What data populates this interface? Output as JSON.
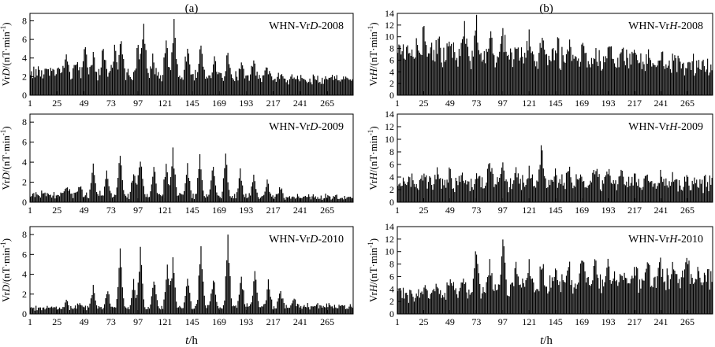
{
  "figure": {
    "columns": [
      {
        "label": "(a)"
      },
      {
        "label": "(b)"
      }
    ],
    "xlabel": {
      "var": "t",
      "unit": "/h"
    }
  },
  "chart_data": [
    {
      "type": "bar",
      "column": 0,
      "row": 0,
      "annotation": "WHN-VrD-2008",
      "annotation_parts": [
        "WHN-Vr",
        "D",
        "-2008"
      ],
      "ylabel": "VrD/(nT·min⁻¹)",
      "ylabel_parts": [
        "Vr",
        "D",
        "/(nT·min",
        "-1",
        ")"
      ],
      "ylim": [
        0,
        8.8
      ],
      "yticks": [
        0,
        2,
        4,
        6,
        8
      ],
      "xlim": [
        1,
        288
      ],
      "xticks": [
        1,
        25,
        49,
        73,
        97,
        121,
        145,
        169,
        193,
        217,
        241,
        265
      ],
      "baseline": 2.3,
      "noise": 0.55,
      "peaks": [
        [
          25,
          0.6
        ],
        [
          33,
          1.4
        ],
        [
          42,
          1.4
        ],
        [
          50,
          2.5
        ],
        [
          57,
          2.0
        ],
        [
          66,
          2.5
        ],
        [
          76,
          3.0
        ],
        [
          82,
          3.5
        ],
        [
          97,
          3.0
        ],
        [
          102,
          5.9
        ],
        [
          110,
          1.6
        ],
        [
          122,
          3.5
        ],
        [
          129,
          5.5
        ],
        [
          141,
          3.0
        ],
        [
          153,
          3.5
        ],
        [
          165,
          2.5
        ],
        [
          177,
          2.5
        ],
        [
          189,
          1.5
        ],
        [
          200,
          2.0
        ],
        [
          212,
          1.0
        ],
        [
          224,
          0.8
        ]
      ],
      "ystart": 2.5,
      "yend": 1.6
    },
    {
      "type": "bar",
      "column": 1,
      "row": 0,
      "annotation": "WHN-VrH-2008",
      "annotation_parts": [
        "WHN-Vr",
        "H",
        "-2008"
      ],
      "ylabel": "VrH/(nT·min⁻¹)",
      "ylabel_parts": [
        "Vr",
        "H",
        "/(nT·min",
        "-1",
        ")"
      ],
      "ylim": [
        0,
        14
      ],
      "yticks": [
        0,
        2,
        4,
        6,
        8,
        10,
        12,
        14
      ],
      "xlim": [
        1,
        288
      ],
      "xticks": [
        1,
        25,
        49,
        73,
        97,
        121,
        145,
        169,
        193,
        217,
        241,
        265
      ],
      "baseline": 5.4,
      "noise": 1.9,
      "peaks": [
        [
          25,
          4.5
        ],
        [
          38,
          2.5
        ],
        [
          49,
          3.5
        ],
        [
          62,
          4.0
        ],
        [
          73,
          5.0
        ],
        [
          86,
          3.0
        ],
        [
          97,
          3.2
        ],
        [
          110,
          2.8
        ],
        [
          121,
          3.0
        ],
        [
          134,
          4.0
        ],
        [
          146,
          2.5
        ],
        [
          158,
          2.2
        ],
        [
          170,
          2.5
        ],
        [
          182,
          2.2
        ],
        [
          194,
          2.0
        ],
        [
          206,
          1.8
        ],
        [
          218,
          2.0
        ],
        [
          230,
          1.8
        ],
        [
          242,
          1.8
        ],
        [
          254,
          1.8
        ]
      ],
      "ystart": 7.5,
      "yend": 5.0
    },
    {
      "type": "bar",
      "column": 0,
      "row": 1,
      "annotation": "WHN-VrD-2009",
      "annotation_parts": [
        "WHN-Vr",
        "D",
        "-2009"
      ],
      "ylabel": "VrD/(nT·min⁻¹)",
      "ylabel_parts": [
        "Vr",
        "D",
        "/(nT·min",
        "-1",
        ")"
      ],
      "ylim": [
        0,
        8.8
      ],
      "yticks": [
        0,
        2,
        4,
        6,
        8
      ],
      "xlim": [
        1,
        288
      ],
      "xticks": [
        1,
        25,
        49,
        73,
        97,
        121,
        145,
        169,
        193,
        217,
        241,
        265
      ],
      "baseline": 0.9,
      "noise": 0.45,
      "peaks": [
        [
          34,
          0.9
        ],
        [
          45,
          0.9
        ],
        [
          57,
          2.5
        ],
        [
          69,
          2.0
        ],
        [
          81,
          4.0
        ],
        [
          93,
          2.2
        ],
        [
          99,
          4.0
        ],
        [
          111,
          3.0
        ],
        [
          122,
          3.0
        ],
        [
          128,
          4.6
        ],
        [
          141,
          3.0
        ],
        [
          152,
          3.8
        ],
        [
          164,
          3.0
        ],
        [
          175,
          3.8
        ],
        [
          188,
          2.4
        ],
        [
          200,
          2.0
        ],
        [
          212,
          1.5
        ],
        [
          224,
          1.0
        ]
      ],
      "ystart": 0.8,
      "yend": 0.5
    },
    {
      "type": "bar",
      "column": 1,
      "row": 1,
      "annotation": "WHN-VrH-2009",
      "annotation_parts": [
        "WHN-Vr",
        "H",
        "-2009"
      ],
      "ylabel": "VrH/(nT·min⁻¹)",
      "ylabel_parts": [
        "Vr",
        "H",
        "/(nT·min",
        "-1",
        ")"
      ],
      "ylim": [
        0,
        14
      ],
      "yticks": [
        0,
        2,
        4,
        6,
        8,
        10,
        12,
        14
      ],
      "xlim": [
        1,
        288
      ],
      "xticks": [
        1,
        25,
        49,
        73,
        97,
        121,
        145,
        169,
        193,
        217,
        241,
        265
      ],
      "baseline": 3.6,
      "noise": 1.7,
      "peaks": [
        [
          25,
          1.2
        ],
        [
          37,
          1.5
        ],
        [
          48,
          2.0
        ],
        [
          61,
          1.5
        ],
        [
          73,
          2.0
        ],
        [
          85,
          3.5
        ],
        [
          97,
          2.5
        ],
        [
          109,
          2.0
        ],
        [
          121,
          2.5
        ],
        [
          132,
          5.5
        ],
        [
          145,
          2.2
        ],
        [
          157,
          2.0
        ],
        [
          169,
          2.2
        ],
        [
          181,
          2.0
        ],
        [
          193,
          2.0
        ],
        [
          205,
          1.8
        ],
        [
          217,
          1.8
        ],
        [
          229,
          1.5
        ],
        [
          241,
          1.2
        ],
        [
          253,
          1.0
        ],
        [
          265,
          1.0
        ]
      ],
      "ystart": 3.0,
      "yend": 3.0
    },
    {
      "type": "bar",
      "column": 0,
      "row": 2,
      "annotation": "WHN-VrD-2010",
      "annotation_parts": [
        "WHN-Vr",
        "D",
        "-2010"
      ],
      "ylabel": "VrD/(nT·min⁻¹)",
      "ylabel_parts": [
        "Vr",
        "D",
        "/(nT·min",
        "-1",
        ")"
      ],
      "ylim": [
        0,
        8.8
      ],
      "yticks": [
        0,
        2,
        4,
        6,
        8
      ],
      "xlim": [
        1,
        288
      ],
      "xticks": [
        1,
        25,
        49,
        73,
        97,
        121,
        145,
        169,
        193,
        217,
        241,
        265
      ],
      "baseline": 0.7,
      "noise": 0.4,
      "peaks": [
        [
          33,
          0.6
        ],
        [
          45,
          0.5
        ],
        [
          57,
          2.2
        ],
        [
          70,
          1.8
        ],
        [
          81,
          5.5
        ],
        [
          93,
          2.5
        ],
        [
          99,
          5.7
        ],
        [
          111,
          3.0
        ],
        [
          123,
          4.2
        ],
        [
          128,
          5.0
        ],
        [
          141,
          3.0
        ],
        [
          153,
          6.0
        ],
        [
          164,
          3.2
        ],
        [
          177,
          6.6
        ],
        [
          189,
          3.0
        ],
        [
          201,
          3.5
        ],
        [
          213,
          2.5
        ],
        [
          224,
          1.5
        ],
        [
          236,
          0.8
        ]
      ],
      "ystart": 0.6,
      "yend": 0.8
    },
    {
      "type": "bar",
      "column": 1,
      "row": 2,
      "annotation": "WHN-VrH-2010",
      "annotation_parts": [
        "WHN-Vr",
        "H",
        "-2010"
      ],
      "ylabel": "VrH/(nT·min⁻¹)",
      "ylabel_parts": [
        "Vr",
        "H",
        "/(nT·min",
        "-1",
        ")"
      ],
      "ylim": [
        0,
        14
      ],
      "yticks": [
        0,
        2,
        4,
        6,
        8,
        10,
        12,
        14
      ],
      "xlim": [
        1,
        288
      ],
      "xticks": [
        1,
        25,
        49,
        73,
        97,
        121,
        145,
        169,
        193,
        217,
        241,
        265
      ],
      "baseline": 3.6,
      "noise": 1.6,
      "peaks": [
        [
          25,
          1.2
        ],
        [
          37,
          1.5
        ],
        [
          49,
          2.0
        ],
        [
          61,
          2.0
        ],
        [
          73,
          6.5
        ],
        [
          85,
          4.5
        ],
        [
          97,
          8.0
        ],
        [
          109,
          4.0
        ],
        [
          121,
          4.0
        ],
        [
          133,
          4.5
        ],
        [
          145,
          3.0
        ],
        [
          157,
          3.0
        ],
        [
          170,
          4.0
        ],
        [
          181,
          4.0
        ],
        [
          193,
          3.0
        ],
        [
          205,
          3.0
        ],
        [
          217,
          2.5
        ],
        [
          229,
          2.5
        ],
        [
          241,
          2.5
        ],
        [
          253,
          2.2
        ],
        [
          265,
          2.0
        ]
      ],
      "ystart": 3.0,
      "yend": 6.0
    }
  ]
}
